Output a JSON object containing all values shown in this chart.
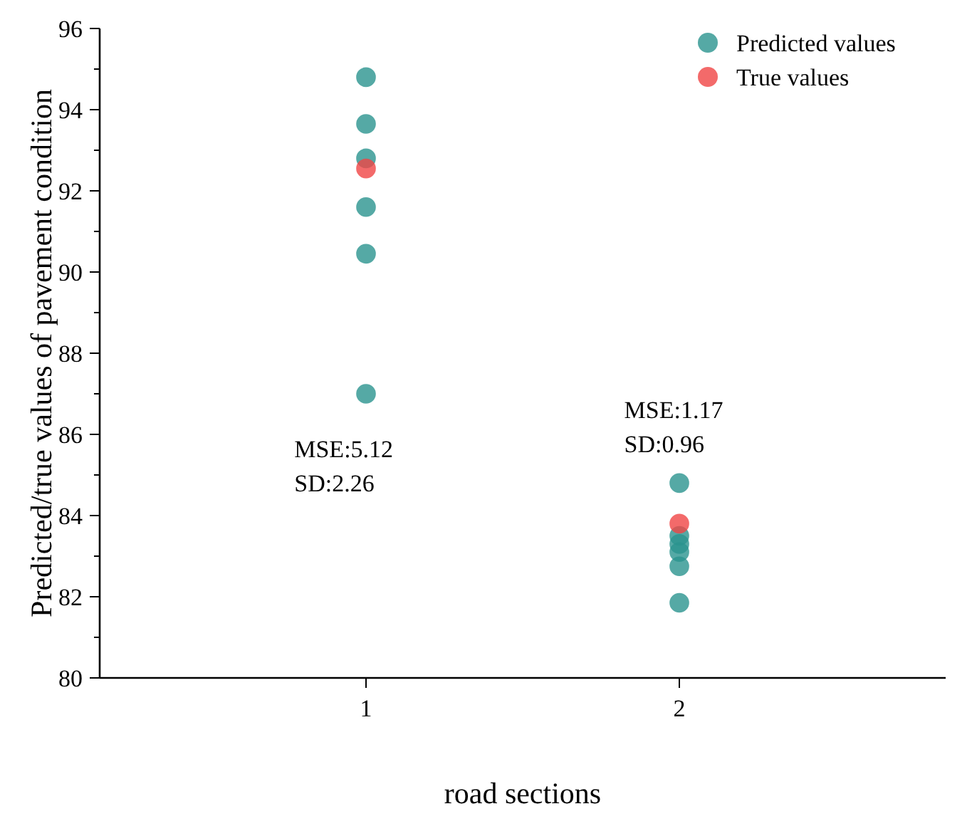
{
  "chart_data": {
    "type": "scatter",
    "xlabel": "road sections",
    "ylabel": "Predicted/true values of pavement condition",
    "categories": [
      "1",
      "2"
    ],
    "ylim": [
      80,
      96
    ],
    "yticks": [
      80,
      {
        "value": 81,
        "label": null
      },
      82,
      {
        "value": 83,
        "label": null
      },
      84,
      {
        "value": 85,
        "label": null
      },
      86,
      {
        "value": 87,
        "label": null
      },
      88,
      {
        "value": 89,
        "label": null
      },
      90,
      {
        "value": 91,
        "label": null
      },
      92,
      {
        "value": 93,
        "label": null
      },
      94,
      {
        "value": 95,
        "label": null
      },
      96
    ],
    "marker": "circle",
    "legend": "top right",
    "grid": false,
    "series": [
      {
        "name": "Predicted values",
        "color": "#2a948f",
        "x": [
          "1",
          "1",
          "1",
          "1",
          "1",
          "1",
          "2",
          "2",
          "2",
          "2",
          "2",
          "2"
        ],
        "values": [
          94.8,
          93.65,
          92.8,
          91.6,
          90.45,
          87.0,
          84.8,
          83.5,
          83.3,
          83.1,
          82.75,
          81.85
        ]
      },
      {
        "name": "True values",
        "color": "#f04545",
        "x": [
          "1",
          "2"
        ],
        "values": [
          92.55,
          83.8
        ]
      }
    ],
    "annotations": [
      "MSE:5.12\nSD:2.26",
      "MSE:1.17\nSD:0.96"
    ]
  }
}
